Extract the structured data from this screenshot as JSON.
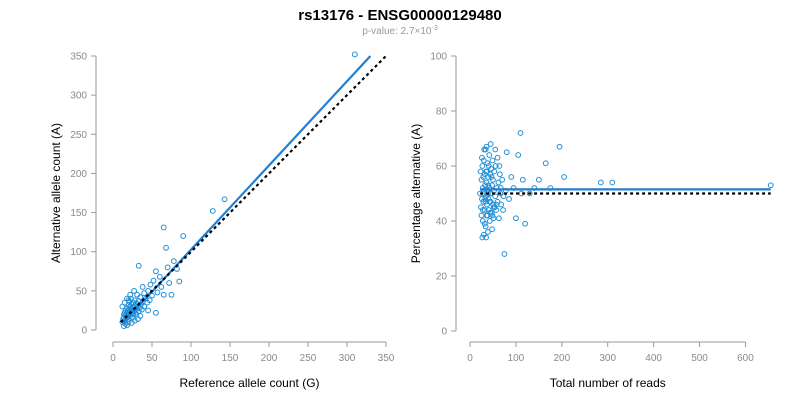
{
  "title": "rs13176 - ENSG00000129480",
  "subtitle": {
    "prefix": "p-value: 2.7×10",
    "exponent": "-3"
  },
  "colors": {
    "points": "#1f8fd6",
    "fit": "#1f7fd4",
    "reference": "#000000"
  },
  "chart_data": [
    {
      "type": "scatter",
      "xlabel": "Reference allele count (G)",
      "ylabel": "Alternative allele count (A)",
      "xlim": [
        0,
        350
      ],
      "ylim": [
        0,
        350
      ],
      "xticks": [
        0,
        50,
        100,
        150,
        200,
        250,
        300,
        350
      ],
      "yticks": [
        0,
        50,
        100,
        150,
        200,
        250,
        300,
        350
      ],
      "grid": false,
      "points": [
        [
          12,
          10
        ],
        [
          13,
          14
        ],
        [
          14,
          16
        ],
        [
          14,
          20
        ],
        [
          15,
          12
        ],
        [
          15,
          22
        ],
        [
          16,
          18
        ],
        [
          16,
          25
        ],
        [
          17,
          15
        ],
        [
          17,
          20
        ],
        [
          18,
          22
        ],
        [
          18,
          28
        ],
        [
          19,
          17
        ],
        [
          19,
          24
        ],
        [
          20,
          14
        ],
        [
          20,
          26
        ],
        [
          20,
          32
        ],
        [
          21,
          20
        ],
        [
          21,
          36
        ],
        [
          22,
          18
        ],
        [
          22,
          24
        ],
        [
          22,
          30
        ],
        [
          23,
          27
        ],
        [
          23,
          40
        ],
        [
          24,
          21
        ],
        [
          24,
          33
        ],
        [
          25,
          16
        ],
        [
          25,
          28
        ],
        [
          25,
          25
        ],
        [
          26,
          35
        ],
        [
          26,
          20
        ],
        [
          27,
          29
        ],
        [
          27,
          24
        ],
        [
          28,
          38
        ],
        [
          28,
          31
        ],
        [
          29,
          22
        ],
        [
          30,
          27
        ],
        [
          30,
          34
        ],
        [
          31,
          45
        ],
        [
          32,
          30
        ],
        [
          33,
          24
        ],
        [
          33,
          37
        ],
        [
          34,
          28
        ],
        [
          35,
          42
        ],
        [
          36,
          33
        ],
        [
          37,
          26
        ],
        [
          38,
          36
        ],
        [
          40,
          47
        ],
        [
          40,
          30
        ],
        [
          42,
          40
        ],
        [
          44,
          35
        ],
        [
          45,
          50
        ],
        [
          47,
          38
        ],
        [
          48,
          58
        ],
        [
          50,
          44
        ],
        [
          52,
          63
        ],
        [
          55,
          22
        ],
        [
          57,
          48
        ],
        [
          60,
          68
        ],
        [
          62,
          55
        ],
        [
          65,
          131
        ],
        [
          65,
          45
        ],
        [
          68,
          105
        ],
        [
          70,
          80
        ],
        [
          72,
          60
        ],
        [
          75,
          45
        ],
        [
          78,
          88
        ],
        [
          82,
          78
        ],
        [
          85,
          62
        ],
        [
          90,
          120
        ],
        [
          128,
          152
        ],
        [
          143,
          167
        ],
        [
          310,
          352
        ],
        [
          14,
          5
        ],
        [
          16,
          8
        ],
        [
          18,
          6
        ],
        [
          20,
          10
        ],
        [
          24,
          9
        ],
        [
          28,
          12
        ],
        [
          32,
          14
        ],
        [
          30,
          20
        ],
        [
          26,
          30
        ],
        [
          35,
          18
        ],
        [
          12,
          30
        ],
        [
          15,
          35
        ],
        [
          18,
          40
        ],
        [
          22,
          45
        ],
        [
          27,
          50
        ],
        [
          33,
          82
        ],
        [
          38,
          55
        ],
        [
          45,
          25
        ],
        [
          55,
          75
        ],
        [
          20,
          38
        ]
      ],
      "series": [
        {
          "kind": "fit_line",
          "from": [
            12,
            8
          ],
          "to": [
            330,
            350
          ]
        },
        {
          "kind": "reference_line",
          "from": [
            10,
            10
          ],
          "to": [
            350,
            350
          ]
        }
      ]
    },
    {
      "type": "scatter",
      "xlabel": "Total number of reads",
      "ylabel": "Percentage alternative (A)",
      "xlim": [
        0,
        660
      ],
      "ylim": [
        0,
        100
      ],
      "xticks": [
        0,
        100,
        200,
        300,
        400,
        500,
        600
      ],
      "yticks": [
        0,
        20,
        40,
        60,
        80,
        100
      ],
      "grid": false,
      "points": [
        [
          22,
          50
        ],
        [
          24,
          45
        ],
        [
          25,
          55
        ],
        [
          26,
          48
        ],
        [
          27,
          60
        ],
        [
          28,
          40
        ],
        [
          28,
          52
        ],
        [
          29,
          47
        ],
        [
          30,
          35
        ],
        [
          30,
          62
        ],
        [
          31,
          50
        ],
        [
          32,
          57
        ],
        [
          32,
          44
        ],
        [
          33,
          53
        ],
        [
          34,
          38
        ],
        [
          34,
          66
        ],
        [
          35,
          49
        ],
        [
          35,
          58
        ],
        [
          36,
          42
        ],
        [
          36,
          54
        ],
        [
          37,
          46
        ],
        [
          38,
          61
        ],
        [
          38,
          51
        ],
        [
          39,
          36
        ],
        [
          40,
          56
        ],
        [
          40,
          48
        ],
        [
          41,
          44
        ],
        [
          42,
          64
        ],
        [
          42,
          52
        ],
        [
          43,
          40
        ],
        [
          44,
          57
        ],
        [
          45,
          50
        ],
        [
          45,
          47
        ],
        [
          46,
          59
        ],
        [
          47,
          43
        ],
        [
          48,
          53
        ],
        [
          48,
          37
        ],
        [
          49,
          62
        ],
        [
          50,
          46
        ],
        [
          50,
          55
        ],
        [
          51,
          41
        ],
        [
          52,
          51
        ],
        [
          53,
          58
        ],
        [
          54,
          45
        ],
        [
          55,
          49
        ],
        [
          56,
          60
        ],
        [
          57,
          44
        ],
        [
          58,
          52
        ],
        [
          60,
          47
        ],
        [
          60,
          63
        ],
        [
          62,
          54
        ],
        [
          63,
          41
        ],
        [
          65,
          57
        ],
        [
          66,
          50
        ],
        [
          68,
          46
        ],
        [
          70,
          55
        ],
        [
          72,
          44
        ],
        [
          75,
          28
        ],
        [
          78,
          51
        ],
        [
          80,
          65
        ],
        [
          85,
          48
        ],
        [
          90,
          56
        ],
        [
          95,
          52
        ],
        [
          100,
          41
        ],
        [
          105,
          64
        ],
        [
          110,
          72
        ],
        [
          112,
          50
        ],
        [
          115,
          55
        ],
        [
          120,
          39
        ],
        [
          130,
          50
        ],
        [
          140,
          52
        ],
        [
          150,
          55
        ],
        [
          165,
          61
        ],
        [
          175,
          52
        ],
        [
          195,
          67
        ],
        [
          205,
          56
        ],
        [
          285,
          54
        ],
        [
          310,
          54
        ],
        [
          655,
          53
        ],
        [
          23,
          58
        ],
        [
          25,
          42
        ],
        [
          27,
          34
        ],
        [
          29,
          56
        ],
        [
          31,
          66
        ],
        [
          33,
          48
        ],
        [
          35,
          34
        ],
        [
          37,
          58
        ],
        [
          39,
          50
        ],
        [
          41,
          60
        ],
        [
          43,
          47
        ],
        [
          45,
          68
        ],
        [
          47,
          56
        ],
        [
          49,
          42
        ],
        [
          52,
          45
        ],
        [
          55,
          66
        ],
        [
          58,
          46
        ],
        [
          64,
          60
        ],
        [
          67,
          52
        ],
        [
          73,
          49
        ],
        [
          26,
          63
        ],
        [
          28,
          44
        ],
        [
          30,
          51
        ],
        [
          32,
          39
        ],
        [
          34,
          47
        ],
        [
          36,
          67
        ],
        [
          38,
          42
        ],
        [
          40,
          53
        ],
        [
          44,
          43
        ],
        [
          46,
          50
        ]
      ],
      "series": [
        {
          "kind": "fit_line",
          "y": 51.5
        },
        {
          "kind": "reference_line",
          "y": 50
        }
      ]
    }
  ]
}
